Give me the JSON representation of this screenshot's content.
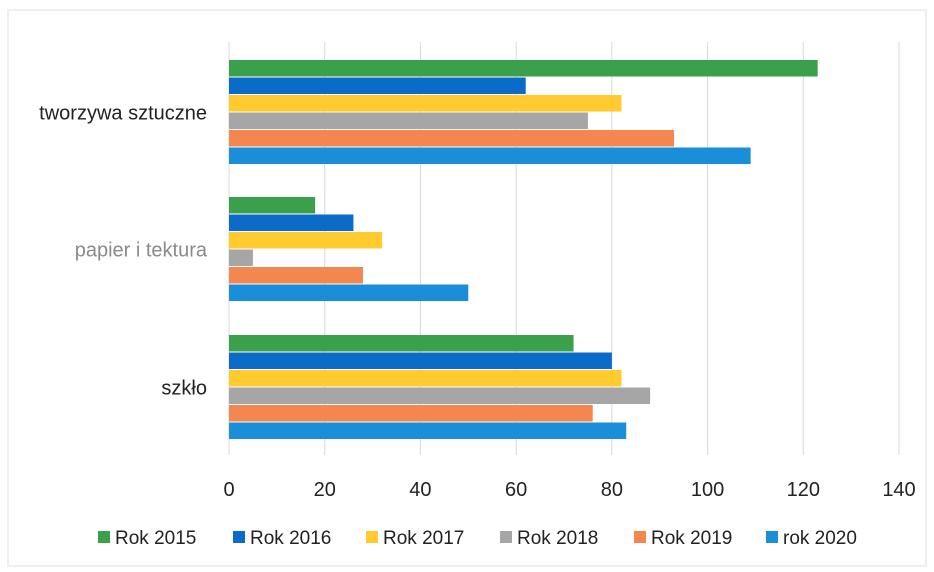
{
  "chart_data": {
    "type": "bar",
    "orientation": "horizontal",
    "categories": [
      "tworzywa sztuczne",
      "papier i tektura",
      "szkło"
    ],
    "series": [
      {
        "name": "Rok 2015",
        "color": "#3aa04c",
        "values": [
          123,
          18,
          72
        ]
      },
      {
        "name": "Rok 2016",
        "color": "#0a6bc8",
        "values": [
          62,
          26,
          80
        ]
      },
      {
        "name": "Rok 2017",
        "color": "#ffcb2e",
        "values": [
          82,
          32,
          82
        ]
      },
      {
        "name": "Rok 2018",
        "color": "#a6a6a6",
        "values": [
          75,
          5,
          88
        ]
      },
      {
        "name": "Rok 2019",
        "color": "#f4874f",
        "values": [
          93,
          28,
          76
        ]
      },
      {
        "name": "rok 2020",
        "color": "#1a8ed9",
        "values": [
          109,
          50,
          83
        ]
      }
    ],
    "xlim": [
      0,
      140
    ],
    "xticks": [
      "0",
      "20",
      "40",
      "60",
      "80",
      "100",
      "120",
      "140"
    ],
    "grid": true,
    "legend_position": "bottom",
    "category_label_colors": [
      "#222222",
      "#8a8a8a",
      "#222222"
    ]
  }
}
